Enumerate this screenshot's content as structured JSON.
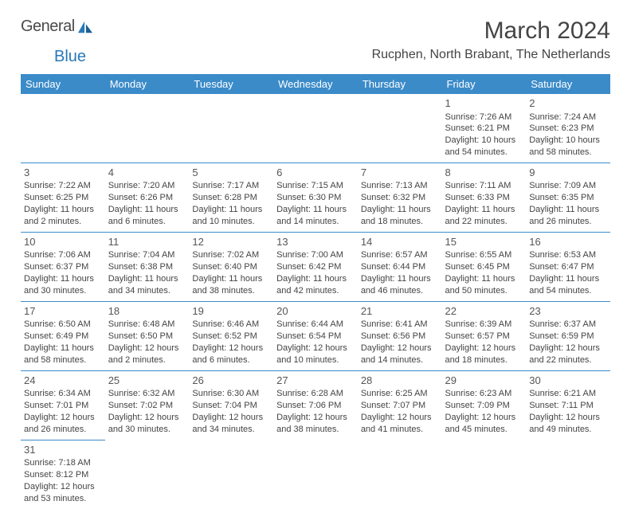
{
  "brand": {
    "part1": "General",
    "part2": "Blue"
  },
  "title": "March 2024",
  "location": "Rucphen, North Brabant, The Netherlands",
  "colors": {
    "header_bg": "#3b8bc9",
    "header_fg": "#ffffff",
    "rule": "#3b8bc9",
    "text": "#444444"
  },
  "day_headers": [
    "Sunday",
    "Monday",
    "Tuesday",
    "Wednesday",
    "Thursday",
    "Friday",
    "Saturday"
  ],
  "weeks": [
    [
      null,
      null,
      null,
      null,
      null,
      {
        "n": "1",
        "sr": "Sunrise: 7:26 AM",
        "ss": "Sunset: 6:21 PM",
        "dl": "Daylight: 10 hours and 54 minutes."
      },
      {
        "n": "2",
        "sr": "Sunrise: 7:24 AM",
        "ss": "Sunset: 6:23 PM",
        "dl": "Daylight: 10 hours and 58 minutes."
      }
    ],
    [
      {
        "n": "3",
        "sr": "Sunrise: 7:22 AM",
        "ss": "Sunset: 6:25 PM",
        "dl": "Daylight: 11 hours and 2 minutes."
      },
      {
        "n": "4",
        "sr": "Sunrise: 7:20 AM",
        "ss": "Sunset: 6:26 PM",
        "dl": "Daylight: 11 hours and 6 minutes."
      },
      {
        "n": "5",
        "sr": "Sunrise: 7:17 AM",
        "ss": "Sunset: 6:28 PM",
        "dl": "Daylight: 11 hours and 10 minutes."
      },
      {
        "n": "6",
        "sr": "Sunrise: 7:15 AM",
        "ss": "Sunset: 6:30 PM",
        "dl": "Daylight: 11 hours and 14 minutes."
      },
      {
        "n": "7",
        "sr": "Sunrise: 7:13 AM",
        "ss": "Sunset: 6:32 PM",
        "dl": "Daylight: 11 hours and 18 minutes."
      },
      {
        "n": "8",
        "sr": "Sunrise: 7:11 AM",
        "ss": "Sunset: 6:33 PM",
        "dl": "Daylight: 11 hours and 22 minutes."
      },
      {
        "n": "9",
        "sr": "Sunrise: 7:09 AM",
        "ss": "Sunset: 6:35 PM",
        "dl": "Daylight: 11 hours and 26 minutes."
      }
    ],
    [
      {
        "n": "10",
        "sr": "Sunrise: 7:06 AM",
        "ss": "Sunset: 6:37 PM",
        "dl": "Daylight: 11 hours and 30 minutes."
      },
      {
        "n": "11",
        "sr": "Sunrise: 7:04 AM",
        "ss": "Sunset: 6:38 PM",
        "dl": "Daylight: 11 hours and 34 minutes."
      },
      {
        "n": "12",
        "sr": "Sunrise: 7:02 AM",
        "ss": "Sunset: 6:40 PM",
        "dl": "Daylight: 11 hours and 38 minutes."
      },
      {
        "n": "13",
        "sr": "Sunrise: 7:00 AM",
        "ss": "Sunset: 6:42 PM",
        "dl": "Daylight: 11 hours and 42 minutes."
      },
      {
        "n": "14",
        "sr": "Sunrise: 6:57 AM",
        "ss": "Sunset: 6:44 PM",
        "dl": "Daylight: 11 hours and 46 minutes."
      },
      {
        "n": "15",
        "sr": "Sunrise: 6:55 AM",
        "ss": "Sunset: 6:45 PM",
        "dl": "Daylight: 11 hours and 50 minutes."
      },
      {
        "n": "16",
        "sr": "Sunrise: 6:53 AM",
        "ss": "Sunset: 6:47 PM",
        "dl": "Daylight: 11 hours and 54 minutes."
      }
    ],
    [
      {
        "n": "17",
        "sr": "Sunrise: 6:50 AM",
        "ss": "Sunset: 6:49 PM",
        "dl": "Daylight: 11 hours and 58 minutes."
      },
      {
        "n": "18",
        "sr": "Sunrise: 6:48 AM",
        "ss": "Sunset: 6:50 PM",
        "dl": "Daylight: 12 hours and 2 minutes."
      },
      {
        "n": "19",
        "sr": "Sunrise: 6:46 AM",
        "ss": "Sunset: 6:52 PM",
        "dl": "Daylight: 12 hours and 6 minutes."
      },
      {
        "n": "20",
        "sr": "Sunrise: 6:44 AM",
        "ss": "Sunset: 6:54 PM",
        "dl": "Daylight: 12 hours and 10 minutes."
      },
      {
        "n": "21",
        "sr": "Sunrise: 6:41 AM",
        "ss": "Sunset: 6:56 PM",
        "dl": "Daylight: 12 hours and 14 minutes."
      },
      {
        "n": "22",
        "sr": "Sunrise: 6:39 AM",
        "ss": "Sunset: 6:57 PM",
        "dl": "Daylight: 12 hours and 18 minutes."
      },
      {
        "n": "23",
        "sr": "Sunrise: 6:37 AM",
        "ss": "Sunset: 6:59 PM",
        "dl": "Daylight: 12 hours and 22 minutes."
      }
    ],
    [
      {
        "n": "24",
        "sr": "Sunrise: 6:34 AM",
        "ss": "Sunset: 7:01 PM",
        "dl": "Daylight: 12 hours and 26 minutes."
      },
      {
        "n": "25",
        "sr": "Sunrise: 6:32 AM",
        "ss": "Sunset: 7:02 PM",
        "dl": "Daylight: 12 hours and 30 minutes."
      },
      {
        "n": "26",
        "sr": "Sunrise: 6:30 AM",
        "ss": "Sunset: 7:04 PM",
        "dl": "Daylight: 12 hours and 34 minutes."
      },
      {
        "n": "27",
        "sr": "Sunrise: 6:28 AM",
        "ss": "Sunset: 7:06 PM",
        "dl": "Daylight: 12 hours and 38 minutes."
      },
      {
        "n": "28",
        "sr": "Sunrise: 6:25 AM",
        "ss": "Sunset: 7:07 PM",
        "dl": "Daylight: 12 hours and 41 minutes."
      },
      {
        "n": "29",
        "sr": "Sunrise: 6:23 AM",
        "ss": "Sunset: 7:09 PM",
        "dl": "Daylight: 12 hours and 45 minutes."
      },
      {
        "n": "30",
        "sr": "Sunrise: 6:21 AM",
        "ss": "Sunset: 7:11 PM",
        "dl": "Daylight: 12 hours and 49 minutes."
      }
    ],
    [
      {
        "n": "31",
        "sr": "Sunrise: 7:18 AM",
        "ss": "Sunset: 8:12 PM",
        "dl": "Daylight: 12 hours and 53 minutes."
      },
      null,
      null,
      null,
      null,
      null,
      null
    ]
  ]
}
